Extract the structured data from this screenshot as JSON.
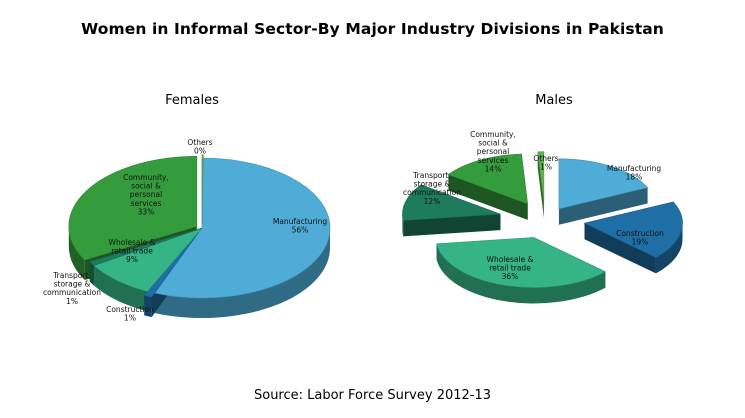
{
  "title": "Women in Informal Sector-By Major Industry Divisions in Pakistan",
  "source": "Source: Labor Force Survey 2012-13",
  "colors": {
    "manufacturing": "#4eacd6",
    "construction": "#1f6fa6",
    "wholesale": "#35b487",
    "transport": "#1e7c5c",
    "community": "#359c3e",
    "others": "#5fb04f"
  },
  "chart_data": [
    {
      "type": "pie",
      "title": "Females",
      "slices": [
        {
          "name": "Manufacturing",
          "label_lines": [
            "Manufacturing"
          ],
          "value": 56,
          "value_label": "56%",
          "color_key": "manufacturing"
        },
        {
          "name": "Construction",
          "label_lines": [
            "Construction"
          ],
          "value": 1,
          "value_label": "1%",
          "color_key": "construction"
        },
        {
          "name": "Wholesale & retail trade",
          "label_lines": [
            "Wholesale &",
            "retail trade"
          ],
          "value": 9,
          "value_label": "9%",
          "color_key": "wholesale"
        },
        {
          "name": "Transport, storage & communication",
          "label_lines": [
            "Transport,",
            "storage &",
            "communication"
          ],
          "value": 1,
          "value_label": "1%",
          "color_key": "transport"
        },
        {
          "name": "Community, social & personal services",
          "label_lines": [
            "Community,",
            "social &",
            "personal",
            "services"
          ],
          "value": 33,
          "value_label": "33%",
          "color_key": "community"
        },
        {
          "name": "Others",
          "label_lines": [
            "Others"
          ],
          "value": 0,
          "value_label": "0%",
          "color_key": "others"
        }
      ]
    },
    {
      "type": "pie",
      "title": "Males",
      "slices": [
        {
          "name": "Manufacturing",
          "label_lines": [
            "Manufacturing"
          ],
          "value": 18,
          "value_label": "18%",
          "color_key": "manufacturing"
        },
        {
          "name": "Construction",
          "label_lines": [
            "Construction"
          ],
          "value": 19,
          "value_label": "19%",
          "color_key": "construction"
        },
        {
          "name": "Wholesale & retail trade",
          "label_lines": [
            "Wholesale &",
            "retail trade"
          ],
          "value": 36,
          "value_label": "36%",
          "color_key": "wholesale"
        },
        {
          "name": "Transport, storage & communication",
          "label_lines": [
            "Transport,",
            "storage &",
            "communication"
          ],
          "value": 12,
          "value_label": "12%",
          "color_key": "transport"
        },
        {
          "name": "Community, social & personal services",
          "label_lines": [
            "Community,",
            "social &",
            "personal",
            "services"
          ],
          "value": 14,
          "value_label": "14%",
          "color_key": "community"
        },
        {
          "name": "Others",
          "label_lines": [
            "Others"
          ],
          "value": 1,
          "value_label": "1%",
          "color_key": "others"
        }
      ]
    }
  ]
}
